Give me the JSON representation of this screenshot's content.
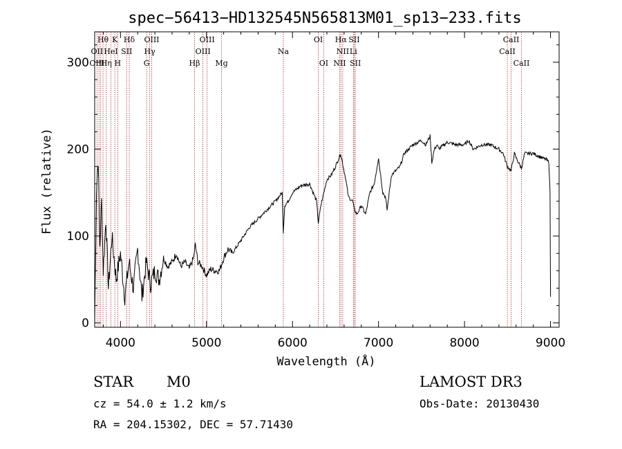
{
  "chart_data": {
    "type": "line",
    "title": "spec−56413−HD132545N565813M01_sp13−233.fits",
    "xlabel": "Wavelength (Å)",
    "ylabel": "Flux (relative)",
    "xlim": [
      3700,
      9100
    ],
    "ylim": [
      -5,
      335
    ],
    "xticks": [
      4000,
      5000,
      6000,
      7000,
      8000,
      9000
    ],
    "yticks": [
      0,
      100,
      200,
      300
    ],
    "series": [
      {
        "name": "spectrum",
        "x": [
          3700,
          3720,
          3740,
          3760,
          3780,
          3800,
          3830,
          3860,
          3900,
          3950,
          4000,
          4050,
          4100,
          4150,
          4200,
          4250,
          4300,
          4350,
          4400,
          4450,
          4500,
          4550,
          4600,
          4650,
          4700,
          4750,
          4800,
          4850,
          4870,
          4900,
          4950,
          5000,
          5050,
          5100,
          5150,
          5200,
          5250,
          5300,
          5400,
          5500,
          5600,
          5700,
          5800,
          5880,
          5893,
          5910,
          5950,
          6000,
          6100,
          6200,
          6280,
          6300,
          6330,
          6400,
          6450,
          6500,
          6560,
          6580,
          6620,
          6650,
          6700,
          6720,
          6750,
          6800,
          6850,
          6900,
          6950,
          7000,
          7050,
          7080,
          7100,
          7150,
          7200,
          7250,
          7300,
          7400,
          7500,
          7550,
          7600,
          7620,
          7650,
          7680,
          7700,
          7800,
          7900,
          8000,
          8050,
          8100,
          8200,
          8300,
          8400,
          8450,
          8498,
          8542,
          8580,
          8600,
          8662,
          8700,
          8800,
          8900,
          8950,
          8980,
          8995,
          9000
        ],
        "values": [
          0,
          150,
          190,
          90,
          140,
          60,
          120,
          40,
          100,
          50,
          80,
          30,
          70,
          40,
          85,
          30,
          70,
          45,
          60,
          50,
          75,
          65,
          70,
          80,
          65,
          70,
          62,
          75,
          90,
          70,
          65,
          55,
          62,
          60,
          60,
          75,
          85,
          80,
          95,
          110,
          120,
          130,
          140,
          150,
          105,
          135,
          140,
          150,
          158,
          160,
          140,
          115,
          135,
          165,
          170,
          180,
          195,
          185,
          165,
          145,
          140,
          130,
          125,
          135,
          125,
          150,
          160,
          190,
          150,
          145,
          130,
          170,
          175,
          180,
          195,
          205,
          210,
          205,
          215,
          185,
          200,
          205,
          200,
          208,
          205,
          205,
          210,
          200,
          205,
          205,
          200,
          195,
          180,
          175,
          195,
          190,
          178,
          195,
          195,
          190,
          188,
          185,
          150,
          30
        ]
      }
    ],
    "line_labels": [
      {
        "text": "Hθ",
        "x": 3797,
        "row": 1
      },
      {
        "text": "K",
        "x": 3934,
        "row": 1
      },
      {
        "text": "Hδ",
        "x": 4102,
        "row": 1
      },
      {
        "text": "OIII",
        "x": 4363,
        "row": 1
      },
      {
        "text": "OIII",
        "x": 5007,
        "row": 1
      },
      {
        "text": "OI",
        "x": 6300,
        "row": 1
      },
      {
        "text": "Hα",
        "x": 6563,
        "row": 1
      },
      {
        "text": "SII",
        "x": 6717,
        "row": 1
      },
      {
        "text": "CaII",
        "x": 8542,
        "row": 1
      },
      {
        "text": "OII",
        "x": 3727,
        "row": 2
      },
      {
        "text": "HeI",
        "x": 3889,
        "row": 2
      },
      {
        "text": "SII",
        "x": 4072,
        "row": 2
      },
      {
        "text": "Hγ",
        "x": 4340,
        "row": 2
      },
      {
        "text": "OIII",
        "x": 4959,
        "row": 2
      },
      {
        "text": "Na",
        "x": 5893,
        "row": 2
      },
      {
        "text": "NII",
        "x": 6584,
        "row": 2
      },
      {
        "text": "Li",
        "x": 6708,
        "row": 2
      },
      {
        "text": "CaII",
        "x": 8498,
        "row": 2
      },
      {
        "text": "OIII",
        "x": 3727,
        "row": 3
      },
      {
        "text": "Hη",
        "x": 3835,
        "row": 3
      },
      {
        "text": "H",
        "x": 3968,
        "row": 3
      },
      {
        "text": "G",
        "x": 4304,
        "row": 3
      },
      {
        "text": "Hβ",
        "x": 4861,
        "row": 3
      },
      {
        "text": "Mg",
        "x": 5175,
        "row": 3
      },
      {
        "text": "OI",
        "x": 6363,
        "row": 3
      },
      {
        "text": "NII",
        "x": 6548,
        "row": 3
      },
      {
        "text": "SII",
        "x": 6731,
        "row": 3
      },
      {
        "text": "CaII",
        "x": 8662,
        "row": 3
      }
    ],
    "vlines": [
      3727,
      3750,
      3770,
      3797,
      3835,
      3889,
      3934,
      3968,
      4072,
      4102,
      4304,
      4340,
      4363,
      4861,
      4959,
      5007,
      5175,
      5893,
      6300,
      6363,
      6548,
      6563,
      6584,
      6708,
      6717,
      6731,
      8498,
      8542,
      8662
    ],
    "colors": {
      "spectrum": "#000000",
      "vline": "#b03030"
    }
  },
  "info": {
    "class": "STAR",
    "subclass": "M0",
    "survey": "LAMOST DR3",
    "cz": "cz = 54.0 ± 1.2 km/s",
    "obs_date": "Obs-Date: 20130430",
    "coords": "RA = 204.15302, DEC =  57.71430"
  }
}
